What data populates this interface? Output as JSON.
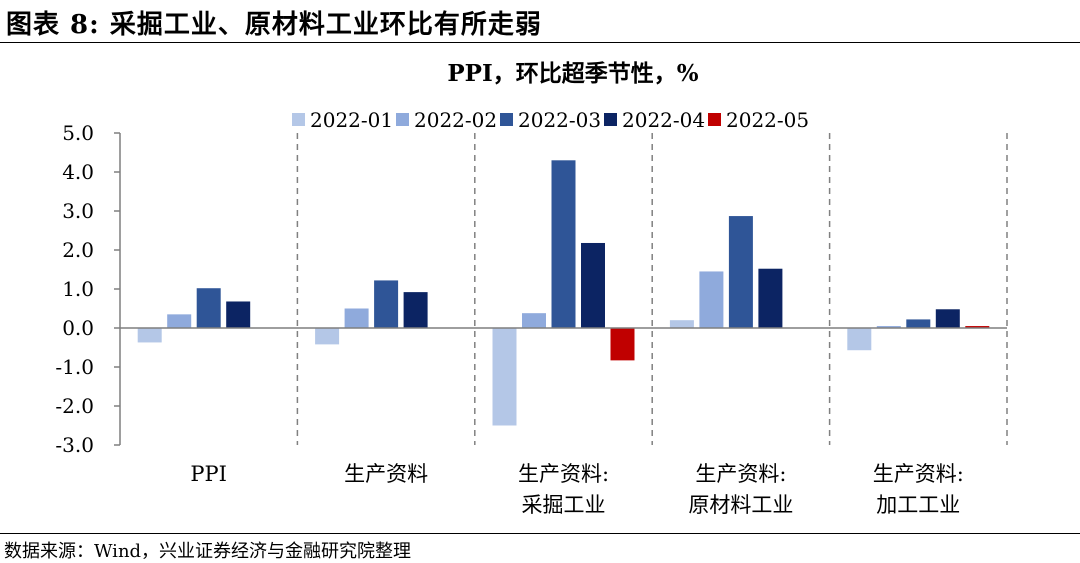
{
  "figure": {
    "label": "图表 8:",
    "title": "采掘工业、原材料工业环比有所走弱",
    "source": "数据来源：Wind，兴业证券经济与金融研究院整理"
  },
  "chart_data": {
    "type": "bar",
    "title": "PPI，环比超季节性，%",
    "xlabel": "",
    "ylabel": "",
    "ylim": [
      -3.0,
      5.0
    ],
    "yticks": [
      "5.0",
      "4.0",
      "3.0",
      "2.0",
      "1.0",
      "0.0",
      "-1.0",
      "-2.0",
      "-3.0"
    ],
    "ytick_values": [
      5,
      4,
      3,
      2,
      1,
      0,
      -1,
      -2,
      -3
    ],
    "grid": false,
    "legend_position": "top",
    "categories": [
      [
        "PPI"
      ],
      [
        "生产资料"
      ],
      [
        "生产资料:",
        "采掘工业"
      ],
      [
        "生产资料:",
        "原材料工业"
      ],
      [
        "生产资料:",
        "加工工业"
      ]
    ],
    "series": [
      {
        "name": "2022-01",
        "color": "#b4c7e7",
        "values": [
          -0.37,
          -0.42,
          -2.5,
          0.2,
          -0.57
        ]
      },
      {
        "name": "2022-02",
        "color": "#8faadc",
        "values": [
          0.35,
          0.5,
          0.38,
          1.45,
          0.05
        ]
      },
      {
        "name": "2022-03",
        "color": "#2f5597",
        "values": [
          1.02,
          1.22,
          4.3,
          2.87,
          0.22
        ]
      },
      {
        "name": "2022-04",
        "color": "#0c2463",
        "values": [
          0.68,
          0.92,
          2.18,
          1.52,
          0.48
        ]
      },
      {
        "name": "2022-05",
        "color": "#c00000",
        "values": [
          null,
          null,
          -0.83,
          null,
          0.05
        ]
      }
    ]
  }
}
